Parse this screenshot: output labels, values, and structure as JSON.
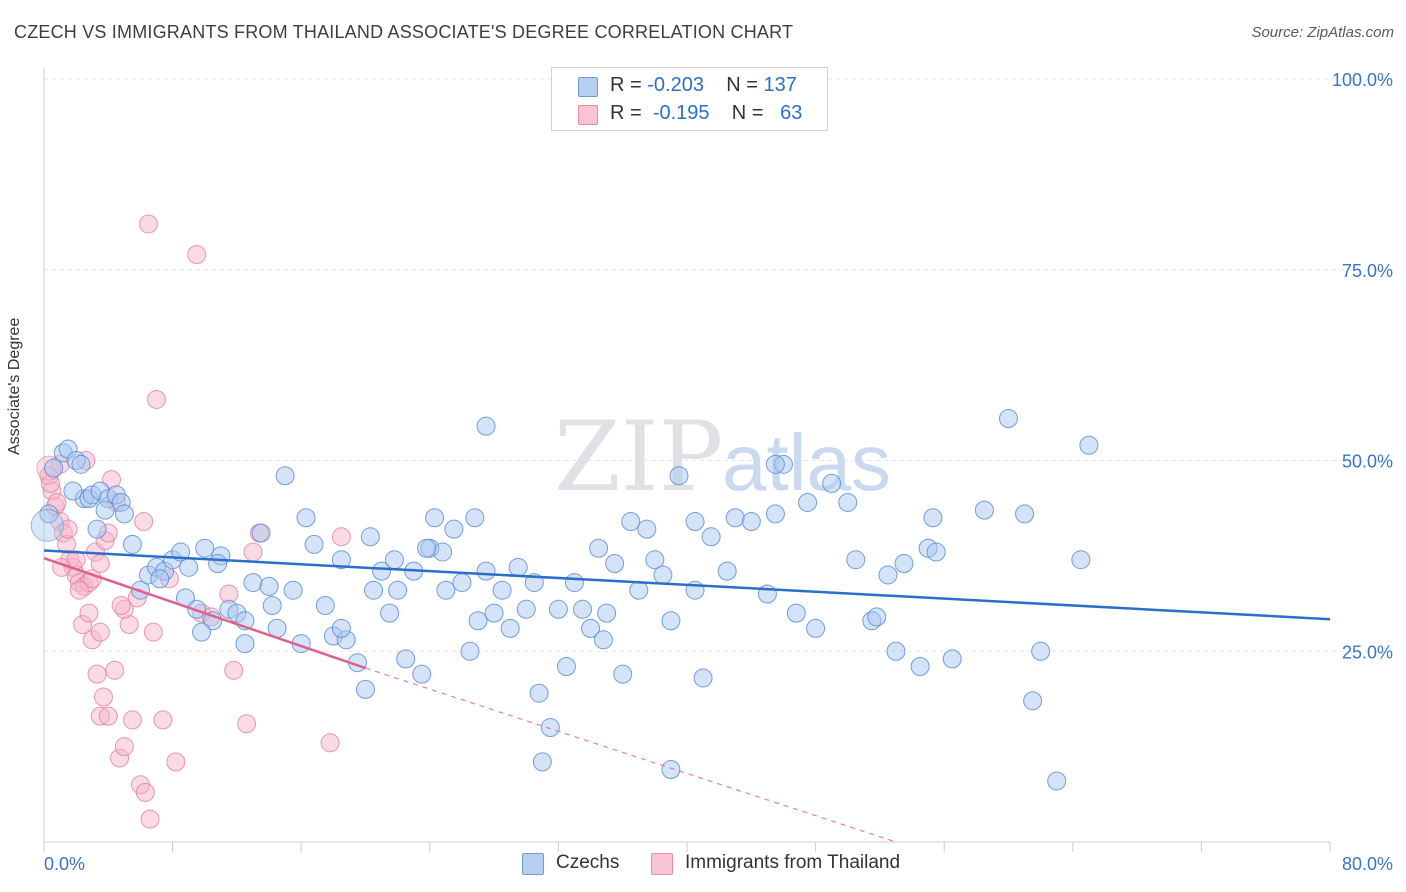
{
  "title": "CZECH VS IMMIGRANTS FROM THAILAND ASSOCIATE'S DEGREE CORRELATION CHART",
  "source": "Source: ZipAtlas.com",
  "watermark": {
    "zip": "ZIP",
    "atlas": "atlas"
  },
  "legend": {
    "czech": {
      "r_label": "R =",
      "r_value": "-0.203",
      "n_label": "N =",
      "n_value": "137"
    },
    "thai": {
      "r_label": "R =",
      "r_value": "-0.195",
      "n_label": "N =",
      "n_value": "63"
    }
  },
  "bottom_legend": {
    "czech": "Czechs",
    "thai": "Immigrants from Thailand"
  },
  "chart_data": {
    "type": "scatter",
    "ylabel": "Associate's Degree",
    "xlim": [
      0,
      80
    ],
    "ylim": [
      0,
      100
    ],
    "x_tick_labels": [
      {
        "value": 0,
        "label": "0.0%"
      },
      {
        "value": 80,
        "label": "80.0%"
      }
    ],
    "y_tick_labels": [
      {
        "value": 100,
        "label": "100.0%"
      },
      {
        "value": 75,
        "label": "75.0%"
      },
      {
        "value": 50,
        "label": "50.0%"
      },
      {
        "value": 25,
        "label": "25.0%"
      }
    ],
    "grid": true,
    "colors": {
      "czech_fill": "#a9c8f0",
      "czech_stroke": "#5b8fd6",
      "czech_line": "#2a6fc9",
      "thai_fill": "#f6b5c9",
      "thai_stroke": "#e47fa1",
      "thai_line": "#e0608c"
    },
    "series": [
      {
        "name": "Czechs",
        "trend": {
          "x0": 0,
          "y0": 38.2,
          "x1": 80,
          "y1": 29.2
        },
        "points": [
          [
            0.3,
            43
          ],
          [
            0.6,
            49
          ],
          [
            1.2,
            51
          ],
          [
            1.5,
            51.5
          ],
          [
            2,
            50
          ],
          [
            2.3,
            49.5
          ],
          [
            2.5,
            45
          ],
          [
            2.8,
            45
          ],
          [
            3,
            45.5
          ],
          [
            3.3,
            41
          ],
          [
            3.5,
            46
          ],
          [
            4,
            45
          ],
          [
            4.5,
            45.5
          ],
          [
            4.8,
            44.5
          ],
          [
            5,
            43
          ],
          [
            5.5,
            39
          ],
          [
            6,
            33
          ],
          [
            6.5,
            35
          ],
          [
            7,
            36
          ],
          [
            7.5,
            35.5
          ],
          [
            8,
            37
          ],
          [
            8.5,
            38
          ],
          [
            9,
            36
          ],
          [
            8.8,
            32
          ],
          [
            9.5,
            30.5
          ],
          [
            10,
            38.5
          ],
          [
            10.5,
            29
          ],
          [
            11,
            37.5
          ],
          [
            11.5,
            30.5
          ],
          [
            12,
            30
          ],
          [
            12.5,
            29
          ],
          [
            13,
            34
          ],
          [
            13.5,
            40.5
          ],
          [
            14,
            33.5
          ],
          [
            14.5,
            28
          ],
          [
            15,
            48
          ],
          [
            15.5,
            33
          ],
          [
            16,
            26
          ],
          [
            16.3,
            42.5
          ],
          [
            16.8,
            39
          ],
          [
            17.5,
            31
          ],
          [
            18,
            27
          ],
          [
            18.5,
            37
          ],
          [
            18.8,
            26.5
          ],
          [
            19.5,
            23.5
          ],
          [
            20,
            20
          ],
          [
            20.3,
            40
          ],
          [
            20.5,
            33
          ],
          [
            21,
            35.5
          ],
          [
            21.5,
            30
          ],
          [
            22,
            33
          ],
          [
            22.5,
            24
          ],
          [
            23,
            35.5
          ],
          [
            23.5,
            22
          ],
          [
            24,
            38.5
          ],
          [
            24.3,
            42.5
          ],
          [
            24.8,
            38
          ],
          [
            25,
            33
          ],
          [
            25.5,
            41
          ],
          [
            26,
            34
          ],
          [
            26.8,
            42.5
          ],
          [
            27,
            29
          ],
          [
            27.5,
            35.5
          ],
          [
            28,
            30
          ],
          [
            28.5,
            33
          ],
          [
            29,
            28
          ],
          [
            29.5,
            36
          ],
          [
            30,
            30.5
          ],
          [
            30.5,
            34
          ],
          [
            31,
            10.5
          ],
          [
            31.5,
            15
          ],
          [
            32,
            30.5
          ],
          [
            32.5,
            23
          ],
          [
            33,
            34
          ],
          [
            33.5,
            30.5
          ],
          [
            34,
            28
          ],
          [
            34.5,
            38.5
          ],
          [
            35,
            30
          ],
          [
            35.5,
            36.5
          ],
          [
            36,
            22
          ],
          [
            36.5,
            42
          ],
          [
            37,
            33
          ],
          [
            37.5,
            41
          ],
          [
            38,
            37
          ],
          [
            38.5,
            35
          ],
          [
            39,
            29
          ],
          [
            39.5,
            48
          ],
          [
            39,
            9.5
          ],
          [
            40.5,
            33
          ],
          [
            41,
            21.5
          ],
          [
            41.5,
            40
          ],
          [
            42.5,
            35.5
          ],
          [
            43,
            42.5
          ],
          [
            44,
            42
          ],
          [
            45,
            32.5
          ],
          [
            45.5,
            43
          ],
          [
            46,
            49.5
          ],
          [
            46.8,
            30
          ],
          [
            47.5,
            44.5
          ],
          [
            48,
            28
          ],
          [
            49,
            47
          ],
          [
            50,
            44.5
          ],
          [
            50.5,
            37
          ],
          [
            51.5,
            29
          ],
          [
            51.8,
            29.5
          ],
          [
            52.5,
            35
          ],
          [
            53,
            25
          ],
          [
            53.5,
            36.5
          ],
          [
            54.5,
            23
          ],
          [
            55,
            38.5
          ],
          [
            55.3,
            42.5
          ],
          [
            55.5,
            38
          ],
          [
            56.5,
            24
          ],
          [
            58.5,
            43.5
          ],
          [
            60,
            55.5
          ],
          [
            61,
            43
          ],
          [
            61.5,
            18.5
          ],
          [
            63,
            8
          ],
          [
            62,
            25
          ],
          [
            64.5,
            37
          ],
          [
            65,
            52
          ],
          [
            27.5,
            54.5
          ],
          [
            45.5,
            49.5
          ],
          [
            23.8,
            38.5
          ],
          [
            40.5,
            42
          ],
          [
            18.5,
            28
          ],
          [
            12.5,
            26
          ],
          [
            10.8,
            36.5
          ],
          [
            9.8,
            27.5
          ],
          [
            30.8,
            19.5
          ],
          [
            1.8,
            46
          ],
          [
            3.8,
            43.5
          ],
          [
            7.2,
            34.5
          ],
          [
            14.2,
            31
          ],
          [
            21.8,
            37
          ],
          [
            26.5,
            25
          ],
          [
            34.8,
            26.5
          ]
        ]
      },
      {
        "name": "Immigrants from Thailand",
        "trend": {
          "x0": 0,
          "y0": 37.2,
          "x1": 20,
          "y1": 22.8
        },
        "trend_dashed": {
          "x0": 20,
          "y0": 22.8,
          "x1": 53,
          "y1": 0
        },
        "points": [
          [
            0.3,
            48
          ],
          [
            0.5,
            46
          ],
          [
            0.7,
            44
          ],
          [
            1,
            42
          ],
          [
            1.2,
            40.5
          ],
          [
            1.4,
            39
          ],
          [
            1.6,
            37
          ],
          [
            1.8,
            36
          ],
          [
            2,
            35
          ],
          [
            2.2,
            34
          ],
          [
            2.5,
            33.5
          ],
          [
            2.8,
            34
          ],
          [
            3,
            34.5
          ],
          [
            3.2,
            38
          ],
          [
            3.5,
            36.5
          ],
          [
            3.8,
            39.5
          ],
          [
            4,
            40.5
          ],
          [
            4.2,
            47.5
          ],
          [
            4.5,
            44.5
          ],
          [
            2.4,
            28.5
          ],
          [
            2.8,
            30
          ],
          [
            3,
            26.5
          ],
          [
            3.3,
            22
          ],
          [
            3.5,
            16.5
          ],
          [
            3.7,
            19
          ],
          [
            4,
            16.5
          ],
          [
            4.4,
            22.5
          ],
          [
            4.7,
            11
          ],
          [
            5,
            12.5
          ],
          [
            5.3,
            28.5
          ],
          [
            5.5,
            16
          ],
          [
            5.8,
            32
          ],
          [
            6,
            7.5
          ],
          [
            6.3,
            6.5
          ],
          [
            6.6,
            3
          ],
          [
            6.5,
            81
          ],
          [
            6.8,
            27.5
          ],
          [
            7,
            58
          ],
          [
            7.4,
            16
          ],
          [
            8.2,
            10.5
          ],
          [
            9.5,
            77
          ],
          [
            9.8,
            30
          ],
          [
            10.4,
            29.5
          ],
          [
            11.5,
            32.5
          ],
          [
            11.8,
            22.5
          ],
          [
            12.6,
            15.5
          ],
          [
            13,
            38
          ],
          [
            13.4,
            40.5
          ],
          [
            17.8,
            13
          ],
          [
            18.5,
            40
          ],
          [
            1,
            49.5
          ],
          [
            2.6,
            50
          ],
          [
            0.8,
            44.5
          ],
          [
            1.5,
            41
          ],
          [
            2,
            37
          ],
          [
            3.5,
            27.5
          ],
          [
            5,
            30.5
          ],
          [
            6.2,
            42
          ],
          [
            7.8,
            34.5
          ],
          [
            0.4,
            47
          ],
          [
            1.1,
            36
          ],
          [
            2.2,
            33
          ],
          [
            4.8,
            31
          ]
        ]
      }
    ]
  }
}
